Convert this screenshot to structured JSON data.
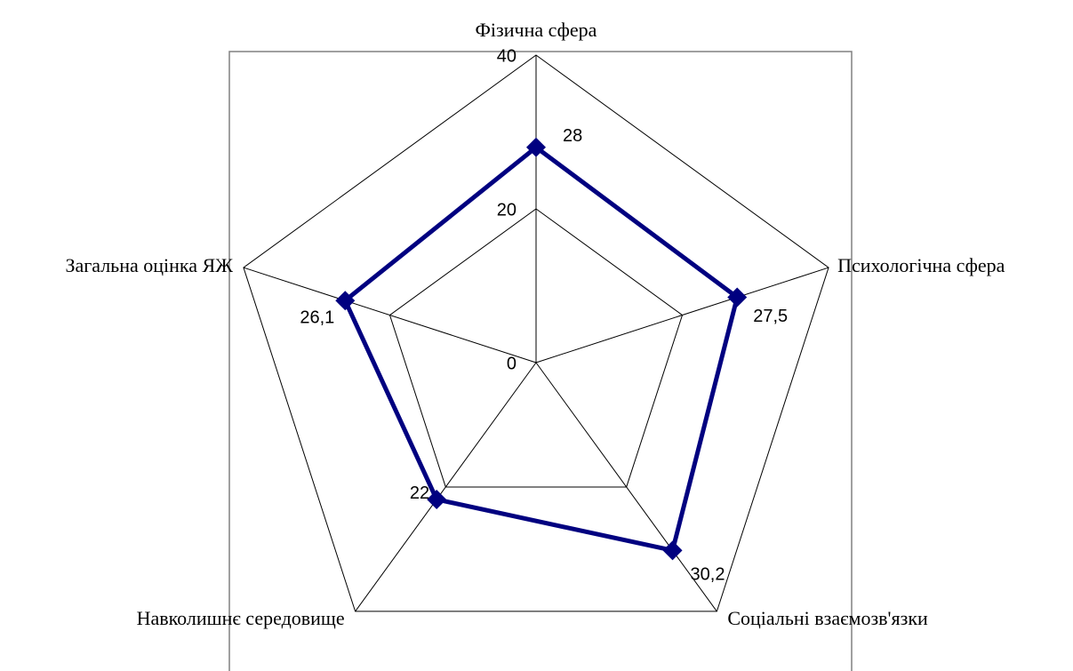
{
  "chart_data": {
    "type": "radar",
    "categories": [
      "Фізична сфера",
      "Психологічна сфера",
      "Соціальні взаємозв'язки",
      "Навколишнє середовище",
      "Загальна оцінка ЯЖ"
    ],
    "series": [
      {
        "name": null,
        "color": "#000080",
        "values": [
          28,
          27.5,
          30.2,
          22,
          26.1
        ],
        "value_labels": [
          "28",
          "27,5",
          "30,2",
          "22",
          "26,1"
        ]
      }
    ],
    "ylim": [
      0,
      40
    ],
    "yticks": [
      0,
      20,
      40
    ],
    "grid": true
  }
}
